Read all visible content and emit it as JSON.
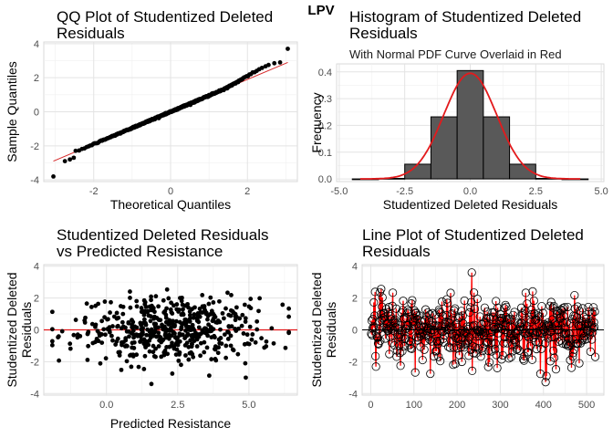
{
  "page": {
    "super_title": "LPV"
  },
  "chart_data": [
    {
      "id": "qq",
      "type": "scatter",
      "title_lines": [
        "QQ Plot of Studentized Deleted",
        "Residuals"
      ],
      "xlabel": "Theoretical Quantiles",
      "ylabel": "Sample Quantiles",
      "xlim": [
        -3.3,
        3.3
      ],
      "ylim": [
        -4.1,
        4.1
      ],
      "xticks": [
        -2,
        0,
        2
      ],
      "yticks": [
        -4,
        -2,
        0,
        2,
        4
      ],
      "grid": true,
      "reference_line": {
        "slope": 0.95,
        "intercept": 0.0,
        "color": "#d62728"
      },
      "n_points": 520,
      "tail_points": {
        "x": [
          -3.05,
          -2.75,
          -2.62,
          -2.52,
          2.55,
          2.7,
          2.85,
          3.05
        ],
        "y": [
          -3.8,
          -2.9,
          -2.8,
          -2.7,
          2.75,
          2.85,
          2.9,
          3.7
        ]
      }
    },
    {
      "id": "hist",
      "type": "bar",
      "title_lines": [
        "Histogram of Studentized Deleted",
        "Residuals"
      ],
      "subtitle": "With Normal PDF Curve Overlaid in Red",
      "xlabel": "Studentized Deleted Residuals",
      "ylabel": "Frequency",
      "xlim": [
        -5.1,
        5.1
      ],
      "ylim": [
        -0.01,
        0.43
      ],
      "xticks": [
        -5.0,
        -2.5,
        0.0,
        2.5,
        5.0
      ],
      "xtick_labels": [
        "-5.0",
        "-2.5",
        "0.0",
        "2.5",
        "5.0"
      ],
      "yticks": [
        0.0,
        0.1,
        0.2,
        0.3,
        0.4
      ],
      "ytick_labels": [
        "0.0",
        "0.1",
        "0.2",
        "0.3",
        "0.4"
      ],
      "grid": true,
      "bins": [
        {
          "x0": -4.5,
          "x1": -3.5,
          "value": 0.0
        },
        {
          "x0": -3.5,
          "x1": -2.5,
          "value": 0.002
        },
        {
          "x0": -2.5,
          "x1": -1.5,
          "value": 0.055
        },
        {
          "x0": -1.5,
          "x1": -0.5,
          "value": 0.232
        },
        {
          "x0": -0.5,
          "x1": 0.5,
          "value": 0.405
        },
        {
          "x0": 0.5,
          "x1": 1.5,
          "value": 0.232
        },
        {
          "x0": 1.5,
          "x1": 2.5,
          "value": 0.055
        },
        {
          "x0": 2.5,
          "x1": 3.5,
          "value": 0.002
        },
        {
          "x0": 3.5,
          "x1": 4.5,
          "value": 0.0
        }
      ],
      "bar_color": "#595959",
      "curve": {
        "mean": 0.0,
        "sd": 1.01,
        "color": "#e31a1c",
        "range": [
          -4.2,
          4.2
        ]
      }
    },
    {
      "id": "resid_pred",
      "type": "scatter",
      "title_lines": [
        "Studentized Deleted Residuals",
        "vs Predicted Resistance"
      ],
      "xlabel": "Predicted Resistance",
      "ylabel_lines": [
        "Studentized Deleted",
        "Residuals"
      ],
      "xlim": [
        -2.2,
        6.7
      ],
      "ylim": [
        -4.1,
        4.1
      ],
      "xticks": [
        0.0,
        2.5,
        5.0
      ],
      "xtick_labels": [
        "0.0",
        "2.5",
        "5.0"
      ],
      "yticks": [
        -4,
        -2,
        0,
        2,
        4
      ],
      "grid": true,
      "hline": {
        "y": 0,
        "color": "#e31a1c"
      },
      "n_points": 520,
      "x_center": 2.3,
      "x_spread": 1.9
    },
    {
      "id": "line",
      "type": "line",
      "title_lines": [
        "Line Plot of Studentized Deleted",
        "Residuals"
      ],
      "ylabel_lines": [
        "Studentized Deleted",
        "Residuals"
      ],
      "xlim": [
        -20,
        540
      ],
      "ylim": [
        -4.1,
        4.1
      ],
      "xticks": [
        0,
        100,
        200,
        300,
        400,
        500
      ],
      "yticks": [
        -4,
        -2,
        0,
        2,
        4
      ],
      "grid": true,
      "hline": {
        "y": 0,
        "color": "#000000"
      },
      "line_color": "#ff0000",
      "n_points": 520
    }
  ]
}
